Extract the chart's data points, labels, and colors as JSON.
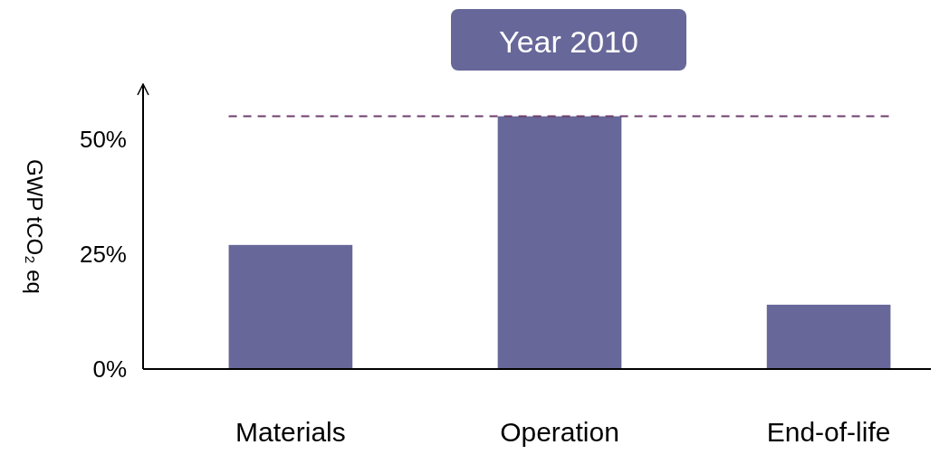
{
  "chart_data": {
    "type": "bar",
    "title": "Year 2010",
    "ylabel": "GWP tCO₂ eq",
    "categories": [
      "Materials",
      "Operation",
      "End-of-life"
    ],
    "values": [
      27,
      55,
      14
    ],
    "color": "#676799",
    "ylim": [
      0,
      62
    ],
    "yticks": [
      {
        "value": 0,
        "label": "0%"
      },
      {
        "value": 25,
        "label": "25%"
      },
      {
        "value": 50,
        "label": "50%"
      }
    ],
    "ref_lines": [
      {
        "axis": "y",
        "value": 55,
        "label": null,
        "color": "#6e3f6e",
        "line_style": "dashed"
      }
    ],
    "grid": false
  }
}
